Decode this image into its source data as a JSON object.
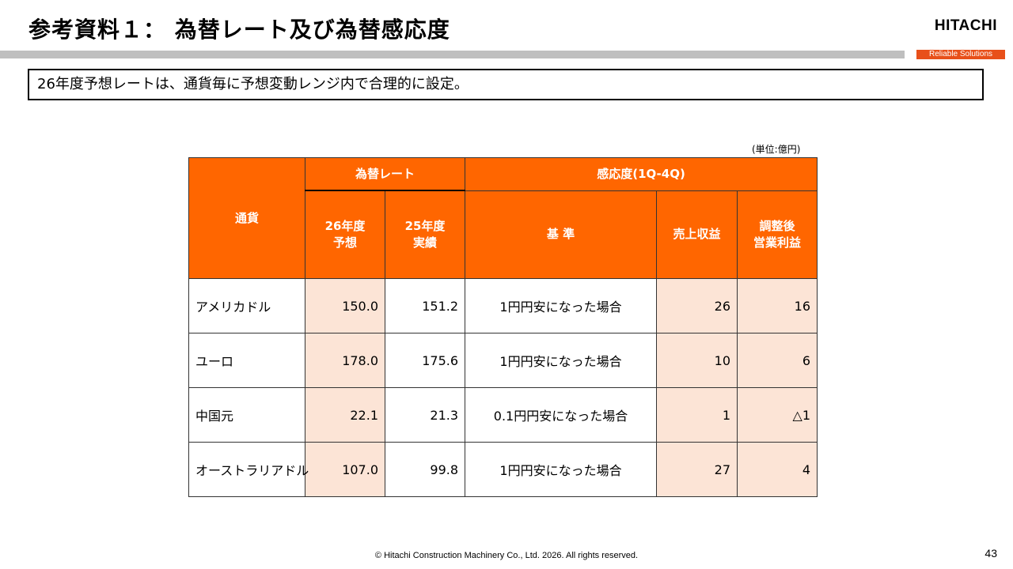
{
  "header": {
    "title": "参考資料１： 為替レート及び為替感応度",
    "logo": "HITACHI",
    "tagline": "Reliable Solutions"
  },
  "summary": "26年度予想レートは、通貨毎に予想変動レンジ内で合理的に設定。",
  "unit": "(単位:億円)",
  "table": {
    "headers": {
      "currency": "通貨",
      "fx_rate": "為替レート",
      "sensitivity": "感応度(1Q-4Q)",
      "fy26_line1": "26年度",
      "fy26_line2": "予想",
      "fy25_line1": "25年度",
      "fy25_line2": "実績",
      "basis": "基 準",
      "revenue": "売上収益",
      "adj_line1": "調整後",
      "adj_line2": "営業利益"
    },
    "rows": [
      {
        "currency": "アメリカドル",
        "fy26": "150.0",
        "fy25": "151.2",
        "basis": "1円円安になった場合",
        "revenue": "26",
        "op_income": "16"
      },
      {
        "currency": "ユーロ",
        "fy26": "178.0",
        "fy25": "175.6",
        "basis": "1円円安になった場合",
        "revenue": "10",
        "op_income": "6"
      },
      {
        "currency": "中国元",
        "fy26": "22.1",
        "fy25": "21.3",
        "basis": "0.1円円安になった場合",
        "revenue": "1",
        "op_income": "△1"
      },
      {
        "currency": "オーストラリアドル",
        "fy26": "107.0",
        "fy25": "99.8",
        "basis": "1円円安になった場合",
        "revenue": "27",
        "op_income": "4"
      }
    ]
  },
  "footer": {
    "copyright": "© Hitachi Construction Machinery Co., Ltd. 2026. All rights reserved.",
    "page_number": "43"
  },
  "colors": {
    "header_orange": "#ff6600",
    "cell_shade": "#fce4d6",
    "tagline_bg": "#e8501a",
    "grey_bar": "#bfbfbf"
  }
}
